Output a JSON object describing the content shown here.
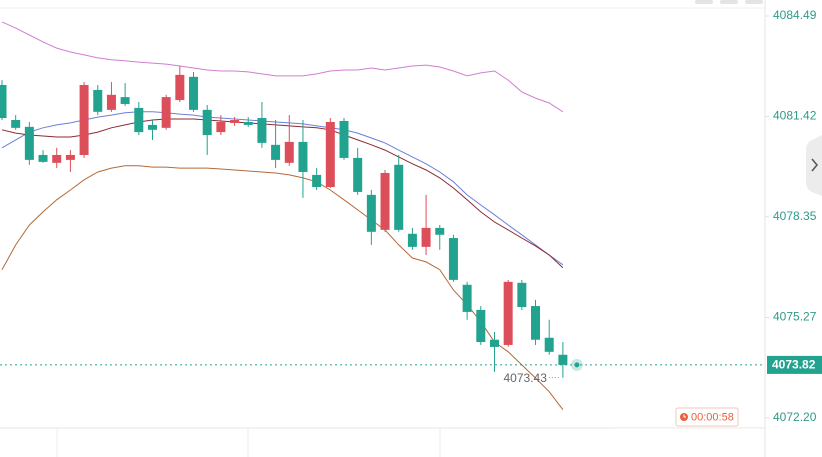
{
  "chart_data": {
    "type": "candlestick",
    "up_color": "#dc4e5a",
    "down_color": "#22a38f",
    "open": [
      4082.38,
      4081.31,
      4081.1,
      4080.24,
      4080.0,
      4080.09,
      4080.24,
      4082.23,
      4081.62,
      4082.01,
      4081.68,
      4081.16,
      4081.07,
      4081.92,
      4082.63,
      4081.62,
      4080.94,
      4081.22,
      4081.25,
      4081.37,
      4080.55,
      4080.0,
      4080.64,
      4079.63,
      4079.26,
      4081.28,
      4080.15,
      4079.02,
      4077.95,
      4079.94,
      4077.83,
      4077.43,
      4078.01,
      4077.7,
      4076.27,
      4075.5,
      4074.59,
      4074.43,
      4076.33,
      4075.62,
      4074.65,
      4074.13
    ],
    "high": [
      4082.53,
      4081.46,
      4081.25,
      4080.39,
      4080.46,
      4080.39,
      4082.47,
      4082.38,
      4082.47,
      4082.44,
      4081.86,
      4081.31,
      4082.08,
      4082.96,
      4082.78,
      4081.77,
      4081.46,
      4081.4,
      4081.4,
      4081.86,
      4081.31,
      4081.46,
      4081.31,
      4079.84,
      4081.37,
      4081.37,
      4080.46,
      4079.17,
      4079.78,
      4080.24,
      4078.01,
      4079.02,
      4078.1,
      4077.8,
      4076.36,
      4075.62,
      4074.83,
      4076.42,
      4076.42,
      4075.81,
      4075.2,
      4074.52
    ],
    "low": [
      4081.31,
      4081.01,
      4079.94,
      4080.0,
      4079.84,
      4079.72,
      4080.15,
      4081.46,
      4081.56,
      4081.74,
      4080.85,
      4080.7,
      4081.01,
      4081.86,
      4081.56,
      4080.24,
      4080.85,
      4081.13,
      4081.1,
      4080.46,
      4079.84,
      4079.91,
      4078.93,
      4079.17,
      4079.23,
      4080.09,
      4079.02,
      4077.49,
      4077.89,
      4077.89,
      4077.34,
      4077.18,
      4077.34,
      4076.36,
      4075.2,
      4074.43,
      4073.61,
      4074.37,
      4075.5,
      4074.43,
      4074.13,
      4073.43
    ],
    "close": [
      4081.37,
      4081.07,
      4080.09,
      4080.03,
      4080.24,
      4080.24,
      4082.38,
      4081.56,
      4082.08,
      4081.8,
      4080.94,
      4081.01,
      4082.01,
      4082.69,
      4081.62,
      4080.85,
      4081.25,
      4081.31,
      4081.16,
      4080.61,
      4080.09,
      4080.64,
      4079.72,
      4079.26,
      4081.25,
      4080.15,
      4079.11,
      4077.89,
      4079.69,
      4077.95,
      4077.43,
      4078.01,
      4077.8,
      4076.42,
      4075.44,
      4074.52,
      4074.37,
      4076.36,
      4075.59,
      4074.59,
      4074.22,
      4073.82
    ],
    "lines": [
      {
        "color": "#d07fd0",
        "values": [
          4084.31,
          4084.12,
          4083.91,
          4083.7,
          4083.51,
          4083.39,
          4083.3,
          4083.21,
          4083.15,
          4083.12,
          4083.08,
          4083.05,
          4083.02,
          4082.96,
          4082.9,
          4082.84,
          4082.81,
          4082.81,
          4082.78,
          4082.72,
          4082.66,
          4082.66,
          4082.66,
          4082.72,
          4082.81,
          4082.84,
          4082.84,
          4082.9,
          4082.84,
          4082.9,
          4082.96,
          4082.99,
          4082.93,
          4082.81,
          4082.66,
          4082.75,
          4082.81,
          4082.53,
          4082.17,
          4081.98,
          4081.83,
          4081.56
        ]
      },
      {
        "color": "#6b7fd8",
        "values": [
          4080.46,
          4080.7,
          4080.94,
          4081.07,
          4081.16,
          4081.22,
          4081.31,
          4081.4,
          4081.46,
          4081.53,
          4081.56,
          4081.56,
          4081.53,
          4081.49,
          4081.46,
          4081.4,
          4081.37,
          4081.34,
          4081.31,
          4081.28,
          4081.25,
          4081.22,
          4081.19,
          4081.13,
          4081.07,
          4081.01,
          4080.91,
          4080.76,
          4080.61,
          4080.39,
          4080.18,
          4079.97,
          4079.72,
          4079.42,
          4079.02,
          4078.71,
          4078.41,
          4078.1,
          4077.8,
          4077.49,
          4077.18,
          4076.88
        ]
      },
      {
        "color": "#8b2a33",
        "values": [
          4081.01,
          4080.91,
          4080.85,
          4080.82,
          4080.79,
          4080.79,
          4080.85,
          4080.94,
          4081.07,
          4081.16,
          4081.25,
          4081.31,
          4081.34,
          4081.34,
          4081.34,
          4081.31,
          4081.28,
          4081.25,
          4081.22,
          4081.19,
          4081.16,
          4081.13,
          4081.1,
          4081.07,
          4081.01,
          4080.85,
          4080.7,
          4080.55,
          4080.39,
          4080.18,
          4079.97,
          4079.78,
          4079.54,
          4079.23,
          4078.87,
          4078.5,
          4078.19,
          4077.95,
          4077.7,
          4077.46,
          4077.18,
          4076.79
        ]
      },
      {
        "color": "#b36a3a",
        "values": [
          4076.73,
          4077.49,
          4078.1,
          4078.5,
          4078.87,
          4079.17,
          4079.48,
          4079.72,
          4079.84,
          4079.91,
          4079.91,
          4079.87,
          4079.87,
          4079.84,
          4079.84,
          4079.84,
          4079.81,
          4079.78,
          4079.75,
          4079.72,
          4079.69,
          4079.63,
          4079.54,
          4079.42,
          4079.17,
          4078.87,
          4078.56,
          4078.25,
          4077.95,
          4077.49,
          4077.09,
          4076.97,
          4076.73,
          4076.11,
          4075.66,
          4075.14,
          4074.52,
          4074.22,
          4073.82,
          4073.42,
          4073.0,
          4072.45
        ]
      }
    ],
    "ylim": [
      4071.89,
      4084.98
    ],
    "yticks": [
      {
        "value": 4072.2,
        "label": "4072.20"
      },
      4075.27,
      4078.35,
      4081.42,
      4084.49
    ],
    "last_price": 4073.82,
    "low_annotation": 4073.43,
    "countdown": "00:00:58"
  }
}
